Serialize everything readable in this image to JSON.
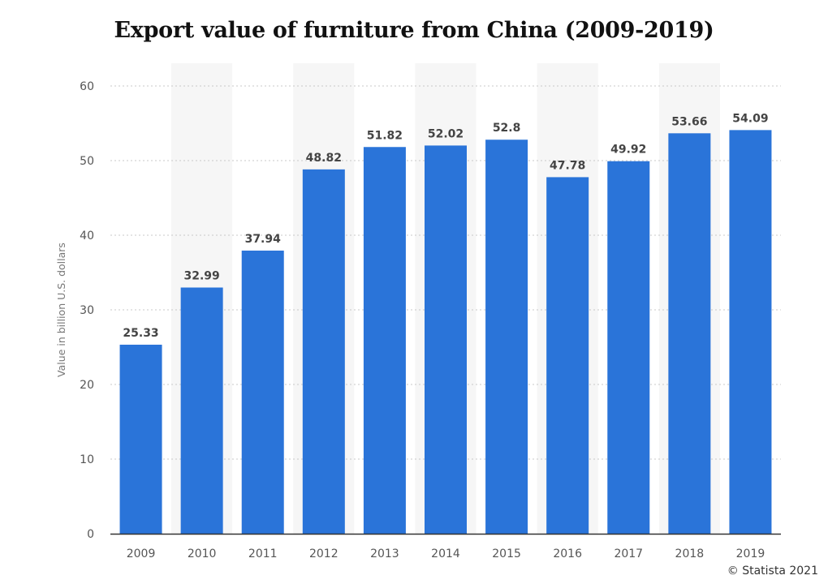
{
  "chart_data": {
    "type": "bar",
    "title": "Export value of furniture from China (2009-2019)",
    "xlabel": "",
    "ylabel": "Value in billion U.S. dollars",
    "categories": [
      "2009",
      "2010",
      "2011",
      "2012",
      "2013",
      "2014",
      "2015",
      "2016",
      "2017",
      "2018",
      "2019"
    ],
    "values": [
      25.33,
      32.99,
      37.94,
      48.82,
      51.82,
      52.02,
      52.8,
      47.78,
      49.92,
      53.66,
      54.09
    ],
    "value_labels": [
      "25.33",
      "32.99",
      "37.94",
      "48.82",
      "51.82",
      "52.02",
      "52.8",
      "47.78",
      "49.92",
      "53.66",
      "54.09"
    ],
    "ylim": [
      0,
      60
    ],
    "yticks": [
      "0",
      "10",
      "20",
      "30",
      "40",
      "50",
      "60"
    ],
    "grid": true,
    "legend": "none",
    "bar_color": "#2a74d9",
    "band_color": "#f6f6f6"
  },
  "credit": "© Statista 2021"
}
